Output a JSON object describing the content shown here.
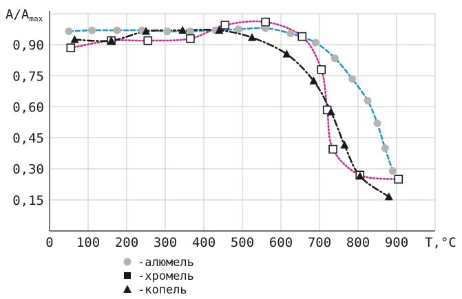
{
  "chart_data": {
    "type": "scatter",
    "ylabel": "A/A",
    "ylabel_sub": "max",
    "xlabel": "T,°C",
    "xlim": [
      0,
      1000
    ],
    "ylim": [
      0,
      1.05
    ],
    "x_ticks": [
      0,
      100,
      200,
      300,
      400,
      500,
      600,
      700,
      800,
      900
    ],
    "x_tick_labels": [
      "0",
      "100",
      "200",
      "300",
      "400",
      "500",
      "600",
      "700",
      "800",
      "900"
    ],
    "y_ticks": [
      0.15,
      0.3,
      0.45,
      0.6,
      0.75,
      0.9
    ],
    "y_tick_labels": [
      "0,15",
      "0,30",
      "0,45",
      "0,60",
      "0,75",
      "0,90"
    ],
    "grid": true,
    "legend_position": "bottom-left",
    "series": [
      {
        "name": "-алюмель",
        "marker": "circle",
        "marker_color": "#b4b4b4",
        "line_color": "#1e98d2",
        "line_style": "dashed",
        "points": [
          [
            50,
            0.965
          ],
          [
            110,
            0.97
          ],
          [
            175,
            0.97
          ],
          [
            240,
            0.97
          ],
          [
            305,
            0.965
          ],
          [
            365,
            0.965
          ],
          [
            430,
            0.97
          ],
          [
            490,
            0.975
          ],
          [
            560,
            0.98
          ],
          [
            625,
            0.955
          ],
          [
            690,
            0.91
          ],
          [
            740,
            0.835
          ],
          [
            785,
            0.735
          ],
          [
            825,
            0.63
          ],
          [
            850,
            0.52
          ],
          [
            870,
            0.4
          ],
          [
            890,
            0.29
          ]
        ]
      },
      {
        "name": "-хромель",
        "marker": "square-open",
        "marker_color": "#1a1a1a",
        "line_color": "#cc2b96",
        "line_style": "dotted",
        "points": [
          [
            55,
            0.885
          ],
          [
            160,
            0.92
          ],
          [
            255,
            0.92
          ],
          [
            365,
            0.93
          ],
          [
            455,
            0.995
          ],
          [
            560,
            1.01
          ],
          [
            655,
            0.94
          ],
          [
            705,
            0.78
          ],
          [
            720,
            0.585
          ],
          [
            735,
            0.395
          ],
          [
            805,
            0.27
          ],
          [
            905,
            0.25
          ]
        ]
      },
      {
        "name": "-копель",
        "marker": "triangle",
        "marker_color": "#1a1a1a",
        "line_color": "#1a1a1a",
        "line_style": "dash-dot",
        "points": [
          [
            65,
            0.925
          ],
          [
            160,
            0.92
          ],
          [
            250,
            0.965
          ],
          [
            345,
            0.97
          ],
          [
            440,
            0.97
          ],
          [
            525,
            0.935
          ],
          [
            615,
            0.855
          ],
          [
            685,
            0.725
          ],
          [
            730,
            0.575
          ],
          [
            765,
            0.415
          ],
          [
            805,
            0.265
          ],
          [
            880,
            0.165
          ]
        ]
      }
    ]
  }
}
